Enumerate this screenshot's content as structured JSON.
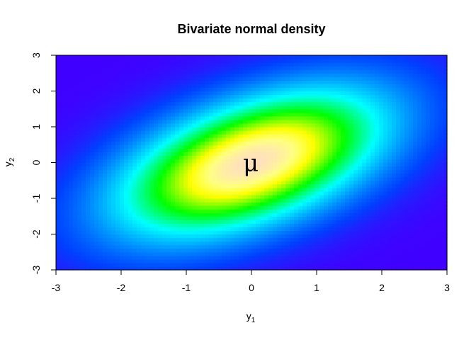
{
  "chart_data": {
    "type": "heatmap",
    "title": "Bivariate normal density",
    "xlabel": {
      "main": "y",
      "sub": "1"
    },
    "ylabel": {
      "main": "y",
      "sub": "2"
    },
    "xlim": [
      -3,
      3
    ],
    "ylim": [
      -3,
      3
    ],
    "xticks": [
      -3,
      -2,
      -1,
      0,
      1,
      2,
      3
    ],
    "yticks": [
      -3,
      -2,
      -1,
      0,
      1,
      2,
      3
    ],
    "distribution": {
      "mean": [
        0,
        0
      ],
      "sd1": 1,
      "sd2": 1,
      "correlation": 0.5
    },
    "grid": false,
    "colormap": [
      "#4000ff",
      "#0040ff",
      "#0080ff",
      "#00c0ff",
      "#00ffff",
      "#00ff80",
      "#00ff00",
      "#80ff00",
      "#ffff00",
      "#ffff80",
      "#ffe0c0"
    ],
    "annotations": [
      {
        "text": "μ",
        "x": 0,
        "y": 0
      }
    ]
  }
}
